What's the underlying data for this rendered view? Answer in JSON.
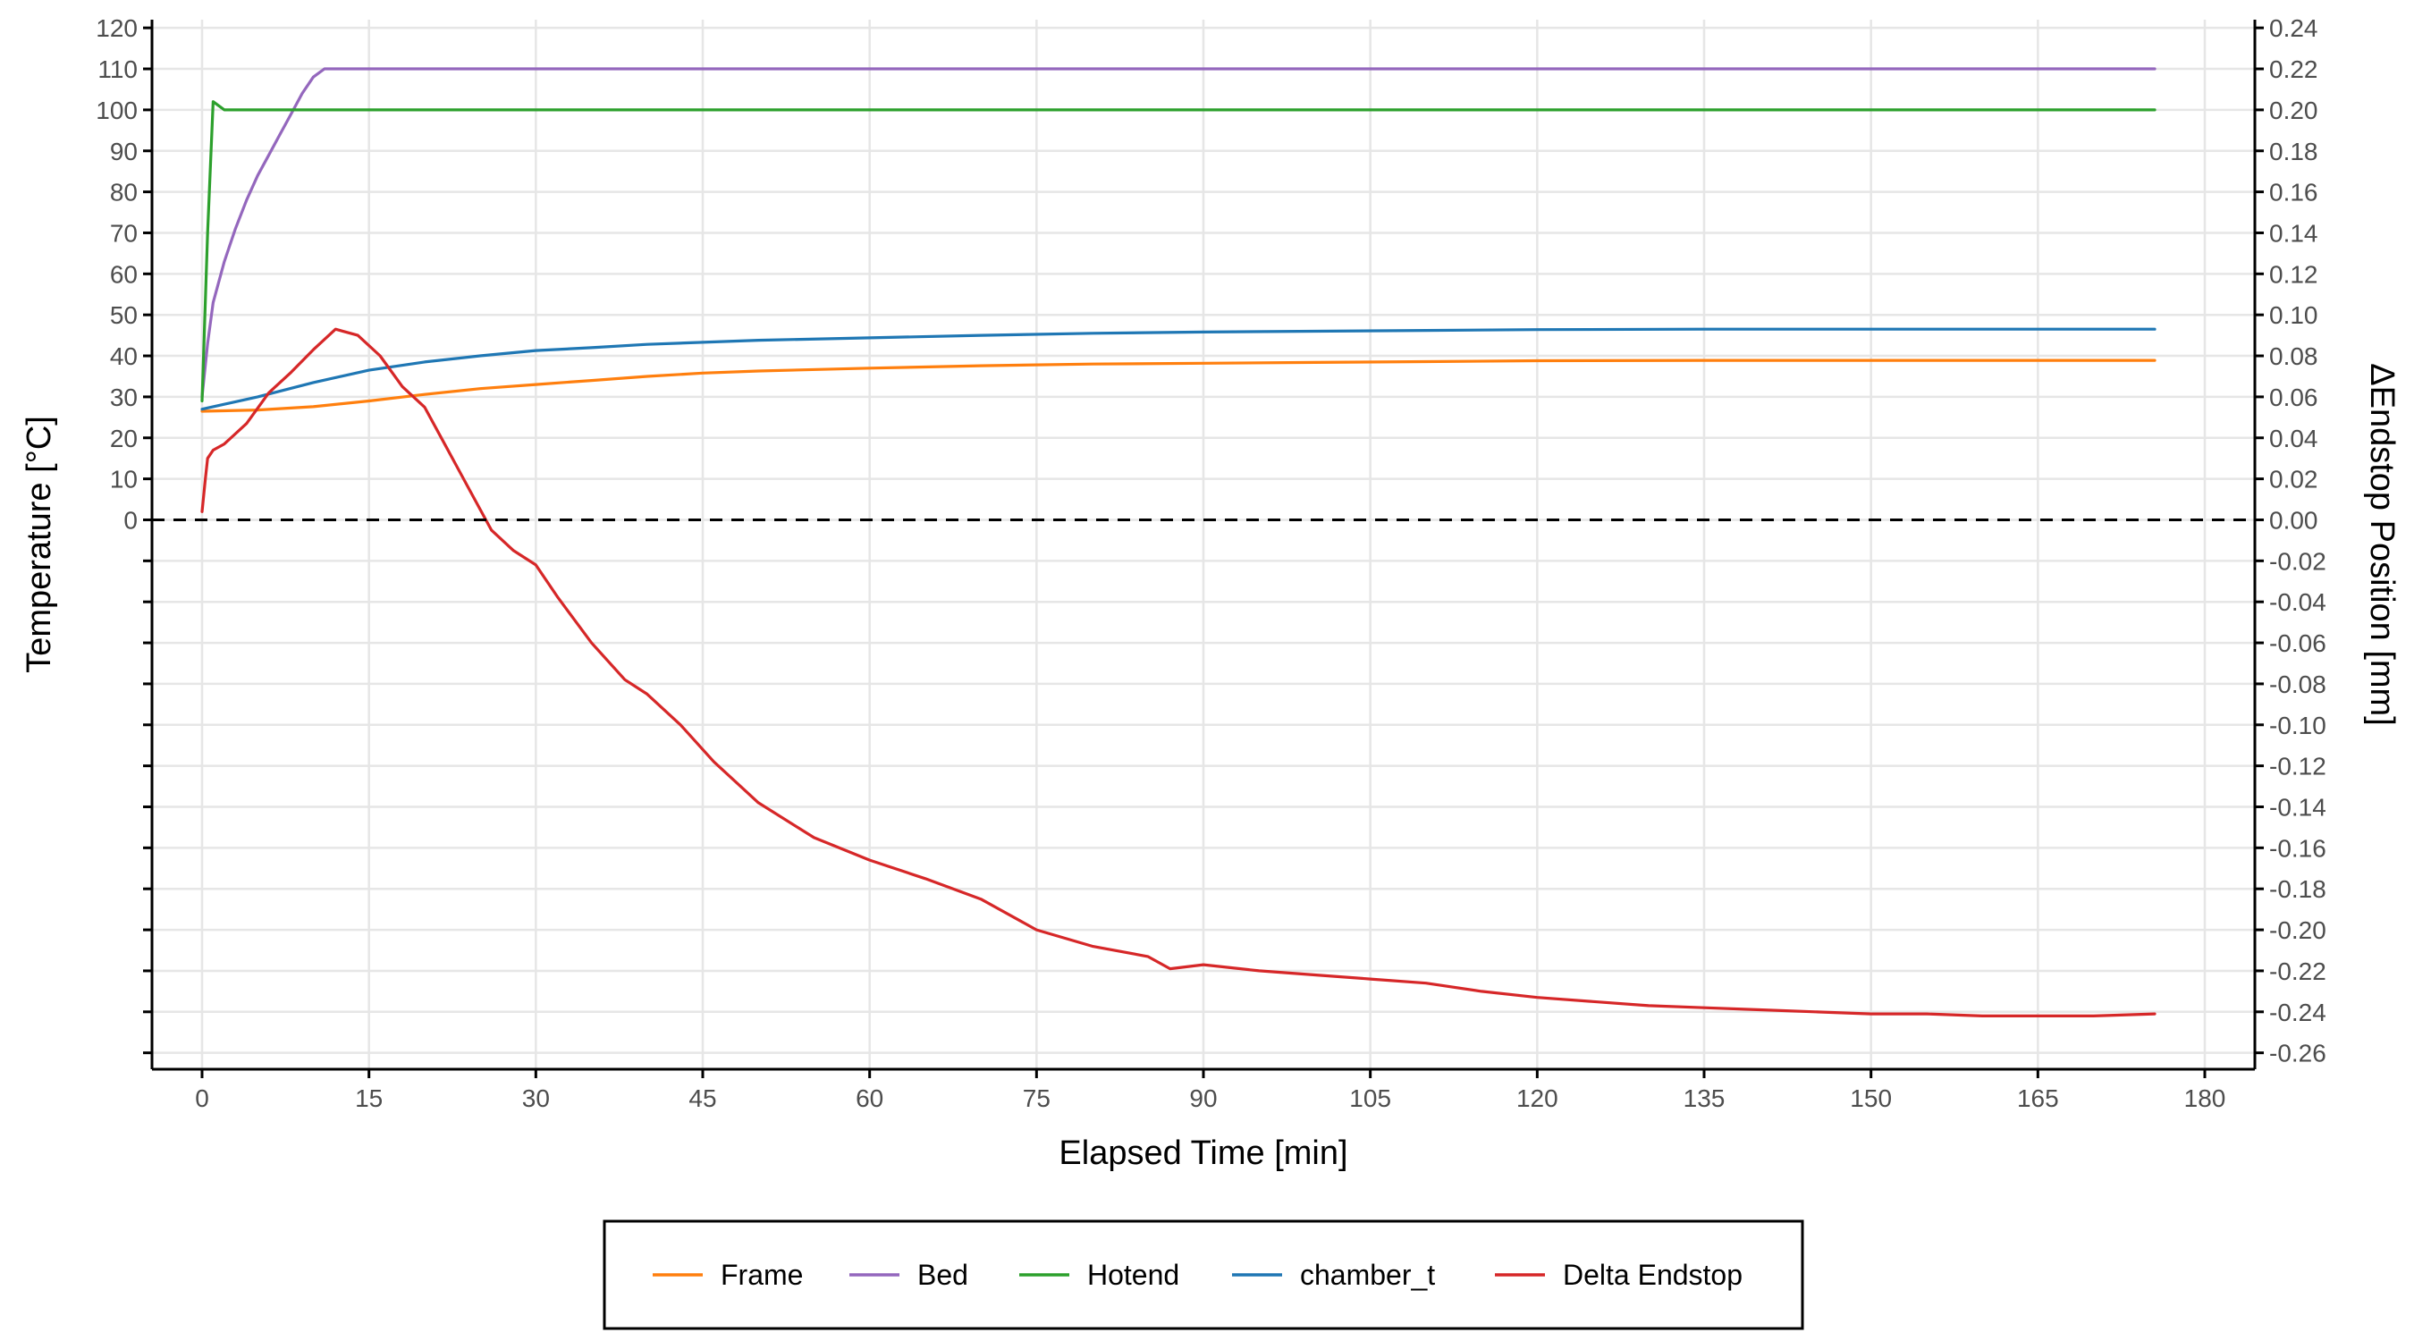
{
  "chart_data": {
    "type": "line",
    "xlabel": "Elapsed Time [min]",
    "ylabel_left": "Temperature [°C]",
    "ylabel_right": "ΔEndstop Position [mm]",
    "xlim": [
      -4.5,
      184.5
    ],
    "ylim_left": [
      -134,
      122
    ],
    "ylim_right": [
      -0.268,
      0.244
    ],
    "x_ticks": [
      "0",
      "15",
      "30",
      "45",
      "60",
      "75",
      "90",
      "105",
      "120",
      "135",
      "150",
      "165",
      "180"
    ],
    "x_tick_values": [
      0,
      15,
      30,
      45,
      60,
      75,
      90,
      105,
      120,
      135,
      150,
      165,
      180
    ],
    "y_left_ticks": [
      "120",
      "110",
      "100",
      "90",
      "80",
      "70",
      "60",
      "50",
      "40",
      "30",
      "20",
      "10",
      "0"
    ],
    "y_left_tick_values": [
      120,
      110,
      100,
      90,
      80,
      70,
      60,
      50,
      40,
      30,
      20,
      10,
      0
    ],
    "y_left_unlabeled_tick_values": [
      -10,
      -20,
      -30,
      -40,
      -50,
      -60,
      -70,
      -80,
      -90,
      -100,
      -110,
      -120,
      -130
    ],
    "y_right_ticks": [
      "0.24",
      "0.22",
      "0.20",
      "0.18",
      "0.16",
      "0.14",
      "0.12",
      "0.10",
      "0.08",
      "0.06",
      "0.04",
      "0.02",
      "0.00",
      "-0.02",
      "-0.04",
      "-0.06",
      "-0.08",
      "-0.10",
      "-0.12",
      "-0.14",
      "-0.16",
      "-0.18",
      "-0.20",
      "-0.22",
      "-0.24",
      "-0.26"
    ],
    "y_right_tick_values": [
      0.24,
      0.22,
      0.2,
      0.18,
      0.16,
      0.14,
      0.12,
      0.1,
      0.08,
      0.06,
      0.04,
      0.02,
      0.0,
      -0.02,
      -0.04,
      -0.06,
      -0.08,
      -0.1,
      -0.12,
      -0.14,
      -0.16,
      -0.18,
      -0.2,
      -0.22,
      -0.24,
      -0.26
    ],
    "reference_line": {
      "axis": "left",
      "y": 0,
      "style": "dashed"
    },
    "grid": true,
    "legend_position": "bottom",
    "series": [
      {
        "name": "Frame",
        "color": "#ff7f0e",
        "axis": "left",
        "x": [
          0,
          5,
          10,
          15,
          20,
          25,
          30,
          35,
          40,
          45,
          50,
          60,
          70,
          80,
          90,
          100,
          110,
          120,
          135,
          150,
          165,
          175.5
        ],
        "y": [
          26.5,
          26.8,
          27.6,
          29,
          30.6,
          32,
          33,
          34,
          35,
          35.8,
          36.3,
          37,
          37.6,
          38,
          38.2,
          38.4,
          38.6,
          38.8,
          38.9,
          38.9,
          38.9,
          38.9
        ]
      },
      {
        "name": "Bed",
        "color": "#9467bd",
        "axis": "left",
        "x": [
          0,
          0.5,
          1,
          2,
          3,
          4,
          5,
          6,
          7,
          8,
          9,
          10,
          11,
          12,
          20,
          40,
          60,
          80,
          100,
          120,
          140,
          160,
          175.5
        ],
        "y": [
          30,
          43,
          53,
          63,
          71,
          78,
          84,
          89,
          94,
          99,
          104,
          108,
          110,
          110,
          110,
          110,
          110,
          110,
          110,
          110,
          110,
          110,
          110
        ]
      },
      {
        "name": "Hotend",
        "color": "#2ca02c",
        "axis": "left",
        "x": [
          0,
          0.5,
          1,
          1.5,
          2,
          3,
          5,
          10,
          20,
          40,
          60,
          80,
          100,
          120,
          140,
          160,
          175.5
        ],
        "y": [
          29,
          70,
          102,
          101,
          100,
          100,
          100,
          100,
          100,
          100,
          100,
          100,
          100,
          100,
          100,
          100,
          100
        ]
      },
      {
        "name": "chamber_t",
        "color": "#1f77b4",
        "axis": "left",
        "x": [
          0,
          5,
          10,
          15,
          20,
          25,
          30,
          35,
          40,
          45,
          50,
          60,
          70,
          80,
          90,
          100,
          110,
          120,
          135,
          150,
          165,
          175.5
        ],
        "y": [
          27,
          30,
          33.5,
          36.5,
          38.5,
          40,
          41.3,
          42,
          42.8,
          43.3,
          43.8,
          44.4,
          45,
          45.5,
          45.8,
          46,
          46.2,
          46.4,
          46.5,
          46.5,
          46.5,
          46.5
        ]
      },
      {
        "name": "Delta Endstop",
        "color": "#d62728",
        "axis": "right",
        "x": [
          0,
          0.3,
          0.5,
          1,
          2,
          4,
          6,
          8,
          10,
          12,
          14,
          16,
          18,
          20,
          22,
          24,
          26,
          28,
          30,
          32,
          35,
          38,
          40,
          43,
          46,
          50,
          55,
          60,
          65,
          70,
          75,
          80,
          85,
          87,
          90,
          95,
          100,
          105,
          110,
          115,
          120,
          125,
          130,
          135,
          140,
          145,
          150,
          155,
          160,
          165,
          170,
          175.5
        ],
        "y": [
          0.004,
          0.02,
          0.03,
          0.034,
          0.037,
          0.047,
          0.062,
          0.072,
          0.083,
          0.093,
          0.09,
          0.08,
          0.065,
          0.055,
          0.035,
          0.015,
          -0.005,
          -0.015,
          -0.022,
          -0.038,
          -0.06,
          -0.078,
          -0.085,
          -0.1,
          -0.118,
          -0.138,
          -0.155,
          -0.166,
          -0.175,
          -0.185,
          -0.2,
          -0.208,
          -0.213,
          -0.219,
          -0.217,
          -0.22,
          -0.222,
          -0.224,
          -0.226,
          -0.23,
          -0.233,
          -0.235,
          -0.237,
          -0.238,
          -0.239,
          -0.24,
          -0.241,
          -0.241,
          -0.242,
          -0.242,
          -0.242,
          -0.241
        ]
      }
    ]
  },
  "legend_items": [
    {
      "label": "Frame",
      "color": "#ff7f0e"
    },
    {
      "label": "Bed",
      "color": "#9467bd"
    },
    {
      "label": "Hotend",
      "color": "#2ca02c"
    },
    {
      "label": "chamber_t",
      "color": "#1f77b4"
    },
    {
      "label": "Delta Endstop",
      "color": "#d62728"
    }
  ],
  "colors": {
    "grid": "#e6e6e6",
    "axis": "#000000",
    "tick_text": "#4d4d4d",
    "reference_line": "#000000"
  }
}
